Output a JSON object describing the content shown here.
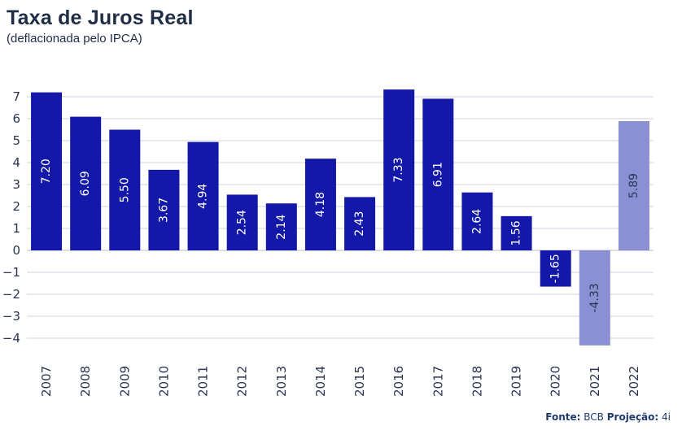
{
  "header": {
    "title": "Taxa de Juros Real",
    "subtitle": "(deflacionada pelo IPCA)"
  },
  "footer": {
    "source_label": "Fonte:",
    "source_value": "BCB",
    "projection_label": "Projeção:",
    "projection_value": "4i"
  },
  "colors": {
    "actual": "#1418a8",
    "projection": "#8b90d4",
    "grid": "#d0d3dc",
    "axis_text": "#2a3550"
  },
  "chart_data": {
    "type": "bar",
    "title": "Taxa de Juros Real",
    "subtitle": "(deflacionada pelo IPCA)",
    "categories": [
      "2007",
      "2008",
      "2009",
      "2010",
      "2011",
      "2012",
      "2013",
      "2014",
      "2015",
      "2016",
      "2017",
      "2018",
      "2019",
      "2020",
      "2021",
      "2022"
    ],
    "values": [
      7.2,
      6.09,
      5.5,
      3.67,
      4.94,
      2.54,
      2.14,
      4.18,
      2.43,
      7.33,
      6.91,
      2.64,
      1.56,
      -1.65,
      -4.33,
      5.89
    ],
    "labels": [
      "7.20",
      "6.09",
      "5.50",
      "3.67",
      "4.94",
      "2.54",
      "2.14",
      "4.18",
      "2.43",
      "7.33",
      "6.91",
      "2.64",
      "1.56",
      "-1.65",
      "-4.33",
      "5.89"
    ],
    "projection_categories": [
      "2021",
      "2022"
    ],
    "y_ticks": [
      7,
      6,
      5,
      4,
      3,
      2,
      1,
      0,
      -1,
      -2,
      -3,
      -4
    ],
    "y_tick_labels": [
      "7",
      "6",
      "5",
      "4",
      "3",
      "2",
      "1",
      "0",
      "−1",
      "−2",
      "−3",
      "−4"
    ],
    "ylim": [
      -4.6,
      7.6
    ],
    "xlabel": "",
    "ylabel": "",
    "grid": true,
    "legend": "none"
  }
}
